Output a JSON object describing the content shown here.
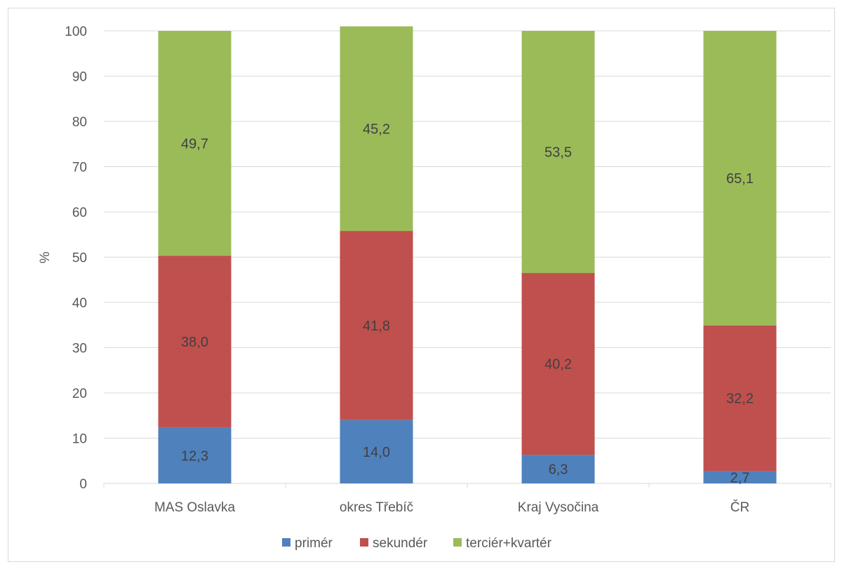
{
  "chart_data": {
    "type": "bar",
    "stacked": true,
    "categories": [
      "MAS Oslavka",
      "okres Třebíč",
      "Kraj Vysočina",
      "ČR"
    ],
    "series": [
      {
        "name": "primér",
        "values": [
          12.3,
          14.0,
          6.3,
          2.7
        ],
        "labels": [
          "12,3",
          "14,0",
          "6,3",
          "2,7"
        ],
        "color": "#4f81bd"
      },
      {
        "name": "sekundér",
        "values": [
          38.0,
          41.8,
          40.2,
          32.2
        ],
        "labels": [
          "38,0",
          "41,8",
          "40,2",
          "32,2"
        ],
        "color": "#c0504d"
      },
      {
        "name": "terciér+kvartér",
        "values": [
          49.7,
          45.2,
          53.5,
          65.1
        ],
        "labels": [
          "49,7",
          "45,2",
          "53,5",
          "65,1"
        ],
        "color": "#9bbb59"
      }
    ],
    "ylabel": "%",
    "ylim": [
      0,
      100
    ],
    "yticks": [
      "0",
      "10",
      "20",
      "30",
      "40",
      "50",
      "60",
      "70",
      "80",
      "90",
      "100"
    ],
    "grid": true,
    "legend_position": "bottom"
  }
}
